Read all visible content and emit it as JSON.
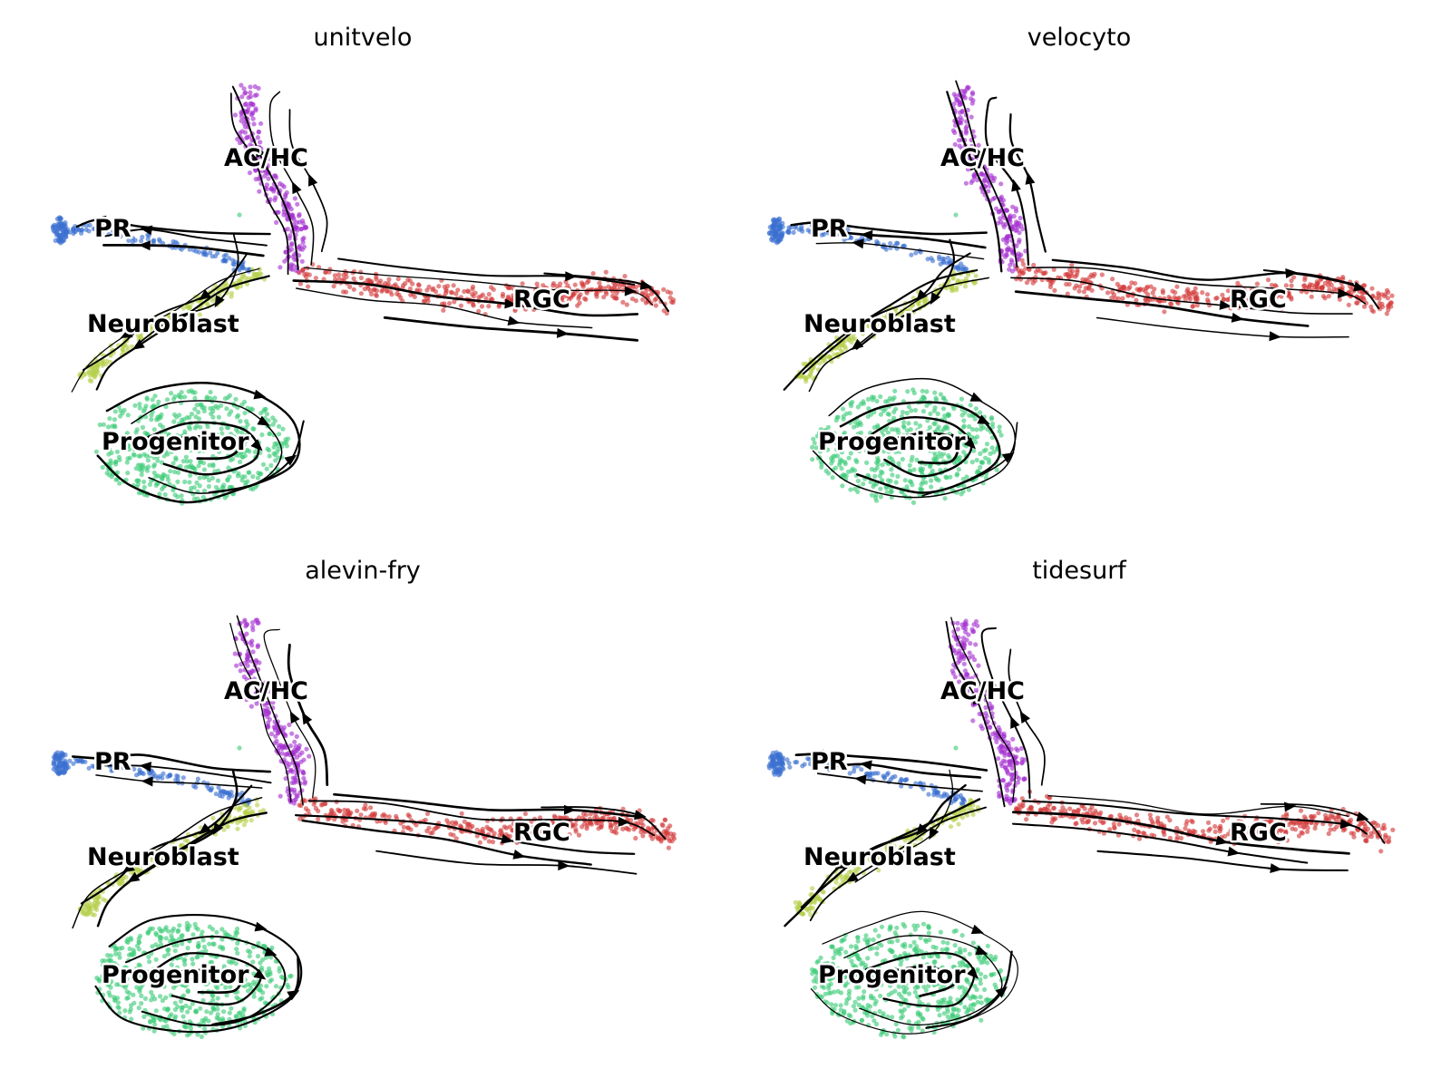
{
  "figure": {
    "panels": [
      "unitvelo",
      "velocyto",
      "alevin-fry",
      "tidesurf"
    ]
  },
  "chart_data": [
    {
      "type": "scatter",
      "title": "unitvelo",
      "subtype": "UMAP embedding with RNA velocity streamlines",
      "axes_visible": false,
      "clusters": [
        {
          "name": "PR",
          "color": "#3a6fd0"
        },
        {
          "name": "AC/HC",
          "color": "#a531d0"
        },
        {
          "name": "Neuroblast",
          "color": "#b4cf4a"
        },
        {
          "name": "RGC",
          "color": "#d43a3a"
        },
        {
          "name": "Progenitor",
          "color": "#3ccc78"
        }
      ]
    },
    {
      "type": "scatter",
      "title": "velocyto",
      "subtype": "UMAP embedding with RNA velocity streamlines",
      "axes_visible": false,
      "clusters": [
        {
          "name": "PR",
          "color": "#3a6fd0"
        },
        {
          "name": "AC/HC",
          "color": "#a531d0"
        },
        {
          "name": "Neuroblast",
          "color": "#b4cf4a"
        },
        {
          "name": "RGC",
          "color": "#d43a3a"
        },
        {
          "name": "Progenitor",
          "color": "#3ccc78"
        }
      ]
    },
    {
      "type": "scatter",
      "title": "alevin-fry",
      "subtype": "UMAP embedding with RNA velocity streamlines",
      "axes_visible": false,
      "clusters": [
        {
          "name": "PR",
          "color": "#3a6fd0"
        },
        {
          "name": "AC/HC",
          "color": "#a531d0"
        },
        {
          "name": "Neuroblast",
          "color": "#b4cf4a"
        },
        {
          "name": "RGC",
          "color": "#d43a3a"
        },
        {
          "name": "Progenitor",
          "color": "#3ccc78"
        }
      ]
    },
    {
      "type": "scatter",
      "title": "tidesurf",
      "subtype": "UMAP embedding with RNA velocity streamlines",
      "axes_visible": false,
      "clusters": [
        {
          "name": "PR",
          "color": "#3a6fd0"
        },
        {
          "name": "AC/HC",
          "color": "#a531d0"
        },
        {
          "name": "Neuroblast",
          "color": "#b4cf4a"
        },
        {
          "name": "RGC",
          "color": "#d43a3a"
        },
        {
          "name": "Progenitor",
          "color": "#3ccc78"
        }
      ]
    }
  ]
}
